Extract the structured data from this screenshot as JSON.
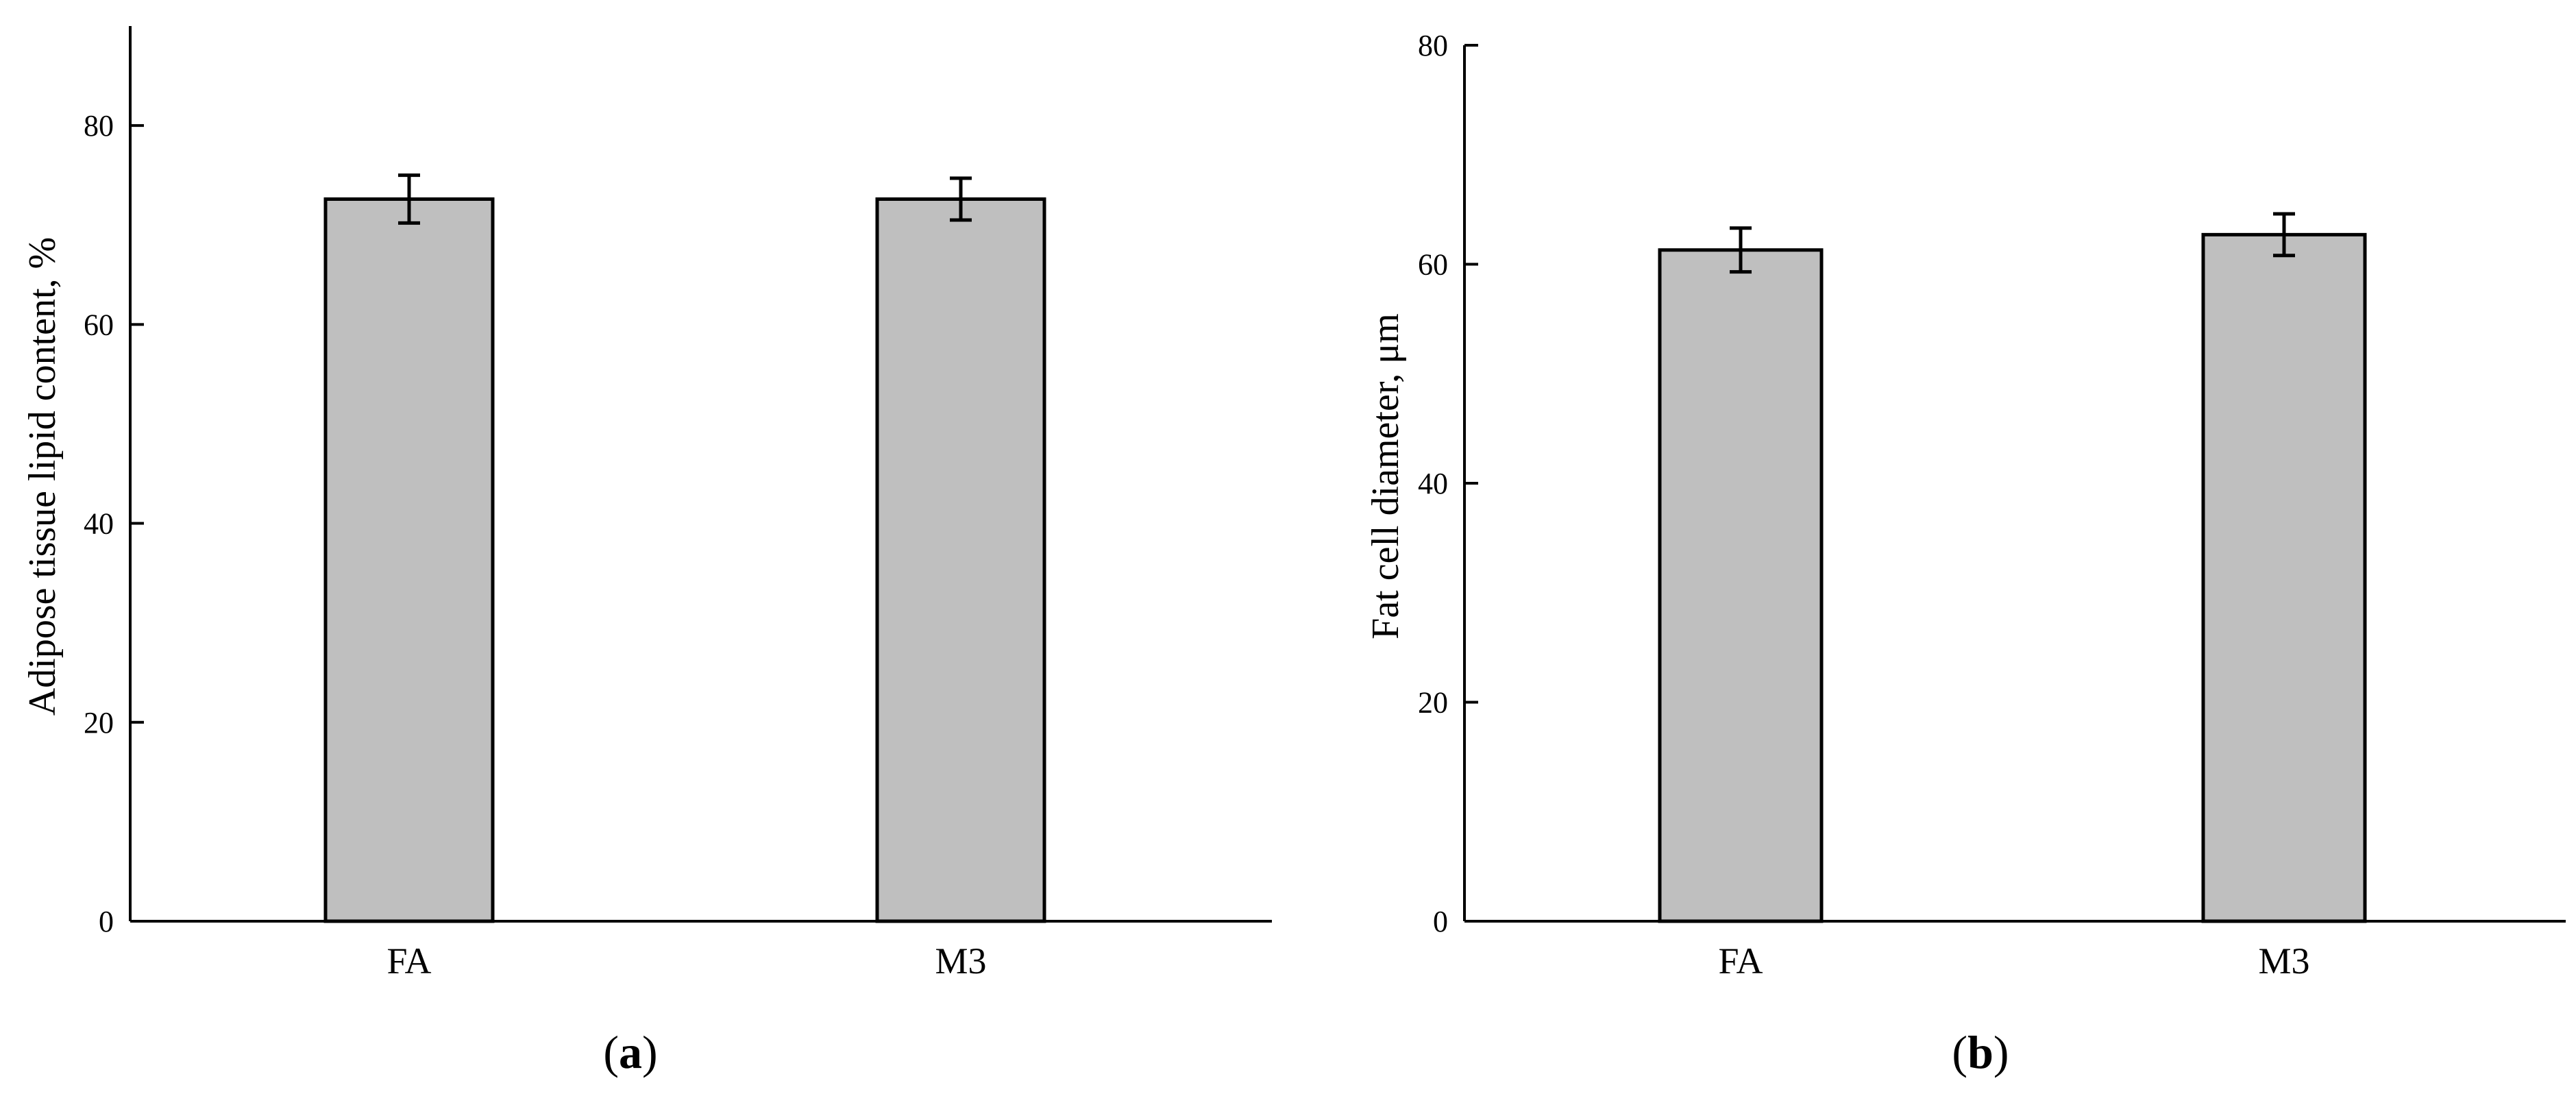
{
  "chart_data": [
    {
      "type": "bar",
      "panel_label": "a",
      "categories": [
        "FA",
        "M3"
      ],
      "values": [
        72.6,
        72.6
      ],
      "errors": [
        2.4,
        2.1
      ],
      "ylabel": "Adipose tissue lipid content, %",
      "xlabel": "",
      "ylim": [
        0,
        90
      ],
      "yticks": [
        0,
        20,
        40,
        60,
        80
      ],
      "bar_color": "#bfbfbf",
      "grid": false
    },
    {
      "type": "bar",
      "panel_label": "b",
      "categories": [
        "FA",
        "M3"
      ],
      "values": [
        61.3,
        62.7
      ],
      "errors": [
        2.0,
        1.9
      ],
      "ylabel": "Fat cell diameter, μm",
      "xlabel": "",
      "ylim": [
        0,
        80
      ],
      "yticks": [
        0,
        20,
        40,
        60,
        80
      ],
      "bar_color": "#bfbfbf",
      "grid": false
    }
  ]
}
